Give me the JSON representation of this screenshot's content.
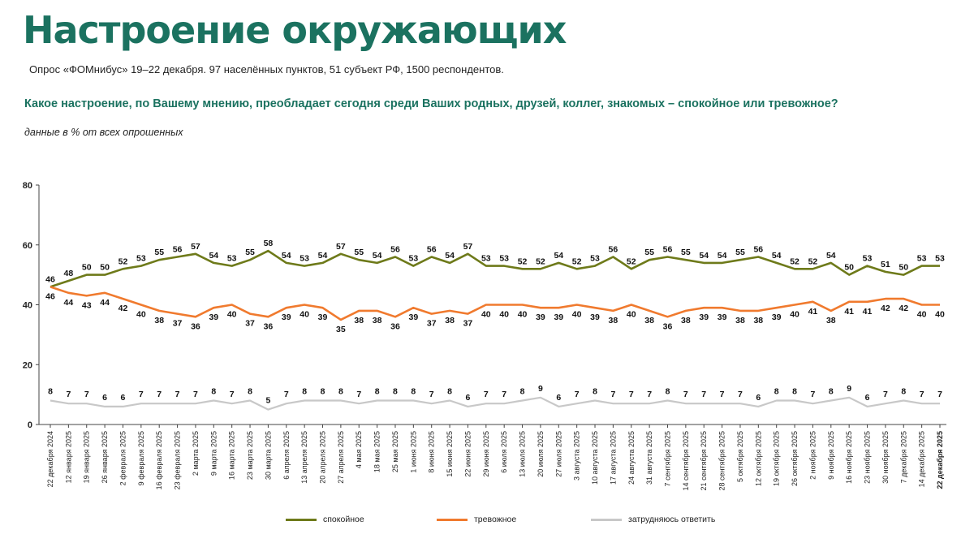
{
  "header": {
    "title": "Настроение окружающих",
    "subtitle": "Опрос «ФОМнибус» 19–22 декабря. 97 населённых пунктов, 51 субъект РФ, 1500 респондентов.",
    "question": "Какое настроение, по Вашему мнению, преобладает сегодня среди Ваших родных, друзей, коллег, знакомых – спокойное или тревожное?",
    "note": "данные в % от всех опрошенных"
  },
  "colors": {
    "calm": "#6e7a1a",
    "anxious": "#f07a2e",
    "unsure": "#c8c8c8",
    "accent": "#1b7260"
  },
  "legend": {
    "calm": "спокойное",
    "anxious": "тревожное",
    "unsure": "затрудняюсь ответить"
  },
  "chart_data": {
    "type": "line",
    "ylim": [
      0,
      80
    ],
    "yticks": [
      0,
      20,
      40,
      60,
      80
    ],
    "grid": false,
    "legend_position": "bottom",
    "x": [
      "22 декабря 2024",
      "12 января 2025",
      "19 января 2025",
      "26 января 2025",
      "2 февраля 2025",
      "9 февраля 2025",
      "16 февраля 2025",
      "23 февраля 2025",
      "2 марта 2025",
      "9 марта 2025",
      "16 марта 2025",
      "23 марта 2025",
      "30 марта 2025",
      "6 апреля 2025",
      "13 апреля 2025",
      "20 апреля 2025",
      "27 апреля 2025",
      "4 мая 2025",
      "18 мая 2025",
      "25 мая 2025",
      "1 июня 2025",
      "8 июня 2025",
      "15 июня 2025",
      "22 июня 2025",
      "29 июня 2025",
      "6 июля 2025",
      "13 июля 2025",
      "20 июля 2025",
      "27 июля 2025",
      "3 августа 2025",
      "10 августа 2025",
      "17 августа 2025",
      "24 августа 2025",
      "31 августа 2025",
      "7 сентября 2025",
      "14 сентября 2025",
      "21 сентября 2025",
      "28 сентября 2025",
      "5 октября 2025",
      "12 октября 2025",
      "19 октября 2025",
      "26 октября 2025",
      "2 ноября 2025",
      "9 ноября 2025",
      "16 ноября 2025",
      "23 ноября 2025",
      "30 ноября 2025",
      "7 декабря 2025",
      "14 декабря 2025",
      "22 декабря 2025"
    ],
    "series": [
      {
        "name": "спокойное",
        "values": [
          46,
          48,
          50,
          50,
          52,
          53,
          55,
          56,
          57,
          54,
          53,
          55,
          58,
          54,
          53,
          54,
          57,
          55,
          54,
          56,
          53,
          56,
          54,
          57,
          53,
          53,
          52,
          52,
          54,
          52,
          53,
          56,
          52,
          55,
          56,
          55,
          54,
          54,
          55,
          56,
          54,
          52,
          52,
          54,
          50,
          53,
          51,
          50,
          53,
          53
        ]
      },
      {
        "name": "тревожное",
        "values": [
          46,
          44,
          43,
          44,
          42,
          40,
          38,
          37,
          36,
          39,
          40,
          37,
          36,
          39,
          40,
          39,
          35,
          38,
          38,
          36,
          39,
          37,
          38,
          37,
          40,
          40,
          40,
          39,
          39,
          40,
          39,
          38,
          40,
          38,
          36,
          38,
          39,
          39,
          38,
          38,
          39,
          40,
          41,
          38,
          41,
          41,
          42,
          42,
          40,
          40
        ]
      },
      {
        "name": "затрудняюсь ответить",
        "values": [
          8,
          7,
          7,
          6,
          6,
          7,
          7,
          7,
          7,
          8,
          7,
          8,
          5,
          7,
          8,
          8,
          8,
          7,
          8,
          8,
          8,
          7,
          8,
          6,
          7,
          7,
          8,
          9,
          6,
          7,
          8,
          7,
          7,
          7,
          8,
          7,
          7,
          7,
          7,
          6,
          8,
          8,
          7,
          8,
          9,
          6,
          7,
          8,
          7,
          7
        ]
      }
    ]
  }
}
